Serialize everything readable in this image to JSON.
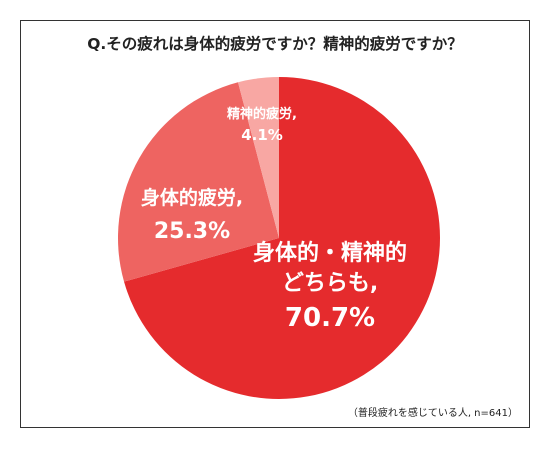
{
  "title": "Q.その疲れは身体的疲労ですか？精神的疲労ですか？",
  "note": "（普段疲れを感じている人, n=641）",
  "colors": {
    "both": "#e52b2d",
    "physical": "#ee6461",
    "mental": "#f8a7a3",
    "label": "#ffffff",
    "frame": "#333333"
  },
  "chart_data": {
    "type": "pie",
    "title": "Q.その疲れは身体的疲労ですか？精神的疲労ですか？",
    "unit": "%",
    "slices": [
      {
        "key": "both",
        "label_lines": [
          "身体的・精神的",
          "どちらも,"
        ],
        "value": 70.7,
        "value_text": "70.7%",
        "color": "#e52b2d"
      },
      {
        "key": "physical",
        "label_lines": [
          "身体的疲労,"
        ],
        "value": 25.3,
        "value_text": "25.3%",
        "color": "#ee6461"
      },
      {
        "key": "mental",
        "label_lines": [
          "精神的疲労,"
        ],
        "value": 4.1,
        "value_text": "4.1%",
        "color": "#f8a7a3"
      }
    ]
  }
}
